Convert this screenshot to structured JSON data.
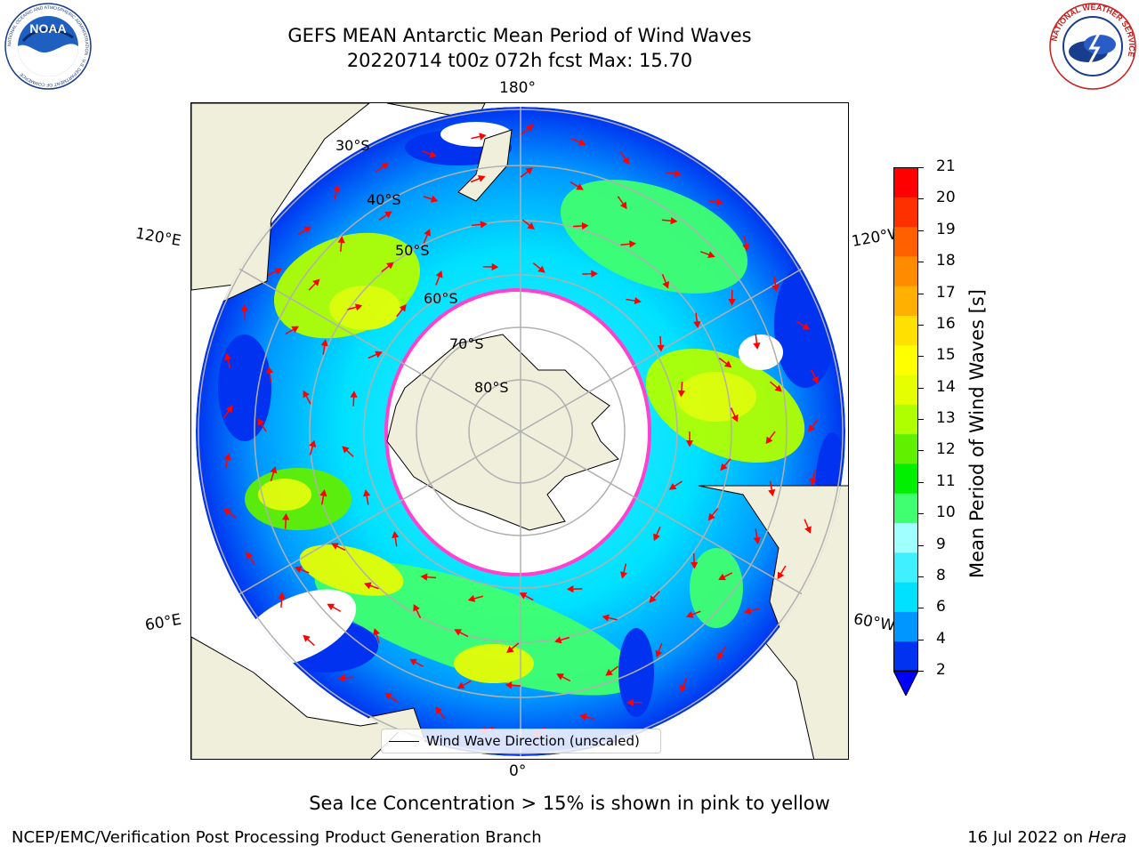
{
  "header": {
    "title_line1": "GEFS MEAN Antarctic Mean Period of Wind Waves",
    "title_line2": "20220714 t00z 072h fcst   Max: 15.70"
  },
  "logos": {
    "left": {
      "name": "noaa-logo",
      "text": "NOAA",
      "ring_text": "NATIONAL OCEANIC AND ATMOSPHERIC ADMINISTRATION · U.S. DEPARTMENT OF COMMERCE"
    },
    "right": {
      "name": "nws-logo",
      "ring_text": "NATIONAL WEATHER SERVICE"
    }
  },
  "map": {
    "projection": "south-polar-stereographic",
    "longitude_labels": {
      "top": "180°",
      "bottom": "0°",
      "upper_left": "120°E",
      "upper_right": "120°W",
      "lower_left": "60°E",
      "lower_right": "60°W"
    },
    "latitude_labels": [
      "30°S",
      "40°S",
      "50°S",
      "60°S",
      "70°S",
      "80°S"
    ],
    "colors": {
      "land": "#efefdc",
      "ocean_low": "#0032f0",
      "ice_edge": "#ff40d0"
    },
    "legend": {
      "label": "Wind Wave Direction (unscaled)"
    }
  },
  "colorbar": {
    "label": "Mean Period of Wind Waves [s]",
    "ticks": [
      "21",
      "20",
      "19",
      "18",
      "17",
      "16",
      "15",
      "14",
      "13",
      "12",
      "11",
      "10",
      "9",
      "8",
      "6",
      "4",
      "2"
    ],
    "colors": [
      "#0032f0",
      "#0096ff",
      "#00e1ff",
      "#40f0ff",
      "#a0ffff",
      "#40ff70",
      "#00f000",
      "#60f000",
      "#b0ff00",
      "#e6ff00",
      "#ffff00",
      "#ffe000",
      "#ffb000",
      "#ff8c00",
      "#ff6000",
      "#ff3000",
      "#ff0000"
    ],
    "extend": "min"
  },
  "notes": {
    "ice": "Sea Ice Concentration > 15% is shown in pink to yellow"
  },
  "footer": {
    "left": "NCEP/EMC/Verification Post Processing Product Generation Branch",
    "right_prefix": "16 Jul 2022 on ",
    "right_host": "Hera"
  }
}
